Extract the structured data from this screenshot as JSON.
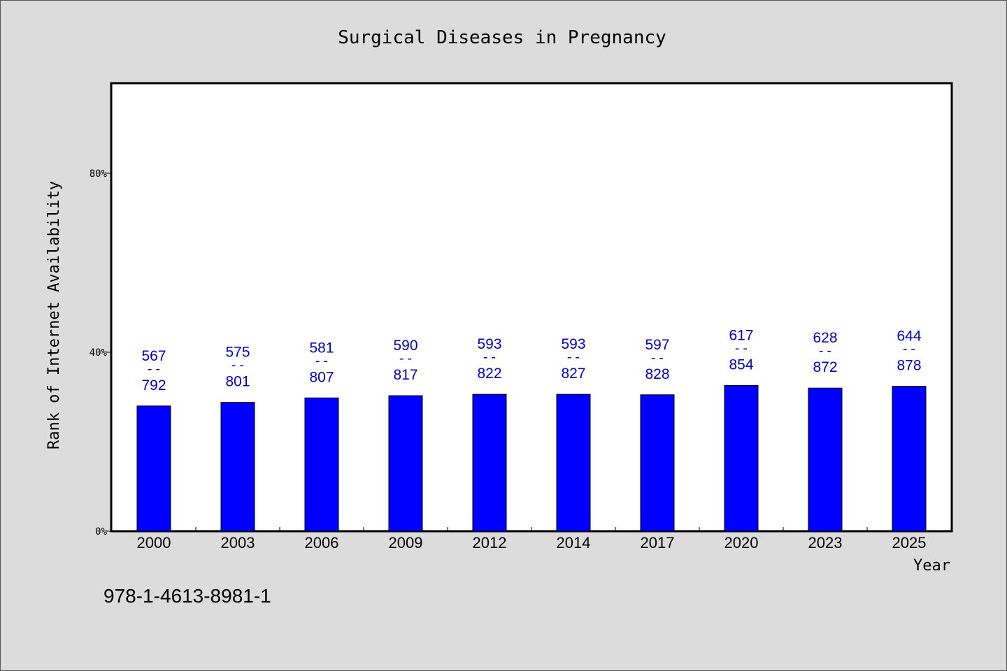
{
  "chart_data": {
    "type": "bar",
    "title": "Surgical Diseases in Pregnancy",
    "xlabel": "Year",
    "ylabel": "Rank of Internet Availability",
    "categories": [
      "2000",
      "2003",
      "2006",
      "2009",
      "2012",
      "2014",
      "2017",
      "2020",
      "2023",
      "2025"
    ],
    "series": [
      {
        "values": [
          0.28,
          0.288,
          0.298,
          0.303,
          0.306,
          0.306,
          0.305,
          0.326,
          0.32,
          0.324
        ]
      }
    ],
    "data_labels": [
      {
        "top": "567",
        "sep": "--",
        "bottom": "792"
      },
      {
        "top": "575",
        "sep": "--",
        "bottom": "801"
      },
      {
        "top": "581",
        "sep": "--",
        "bottom": "807"
      },
      {
        "top": "590",
        "sep": "--",
        "bottom": "817"
      },
      {
        "top": "593",
        "sep": "--",
        "bottom": "822"
      },
      {
        "top": "593",
        "sep": "--",
        "bottom": "827"
      },
      {
        "top": "597",
        "sep": "--",
        "bottom": "828"
      },
      {
        "top": "617",
        "sep": "--",
        "bottom": "854"
      },
      {
        "top": "628",
        "sep": "--",
        "bottom": "872"
      },
      {
        "top": "644",
        "sep": "--",
        "bottom": "878"
      }
    ],
    "yticks": [
      0,
      0.4,
      0.8
    ],
    "ytick_labels": [
      "0%",
      "40%",
      "80%"
    ],
    "ylim": [
      0,
      1.0
    ],
    "grid": false,
    "legend": "none",
    "bar_color": "#0000ff",
    "label_color": "#0000cc",
    "footnote": "978-1-4613-8981-1"
  }
}
